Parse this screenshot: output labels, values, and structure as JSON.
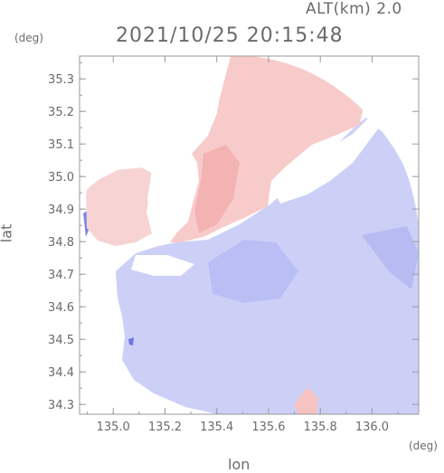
{
  "header": {
    "altitude": "ALT(km) 2.0",
    "timestamp": "2021/10/25 20:15:48"
  },
  "axes": {
    "y_unit": "(deg)",
    "x_unit": "(deg)",
    "y_label": "lat",
    "x_label": "lon",
    "x_ticks": [
      "135.0",
      "135.2",
      "135.4",
      "135.6",
      "135.8",
      "136.0"
    ],
    "y_ticks": [
      "35.3",
      "35.2",
      "35.1",
      "35.0",
      "34.9",
      "34.8",
      "34.7",
      "34.6",
      "34.5",
      "34.4",
      "34.3"
    ],
    "x_range": [
      134.87,
      136.18
    ],
    "y_range": [
      34.27,
      35.37
    ]
  },
  "colors": {
    "approaching": "#c8cdf8",
    "receding": "#f9caca",
    "frame": "#9a9a9a"
  }
}
